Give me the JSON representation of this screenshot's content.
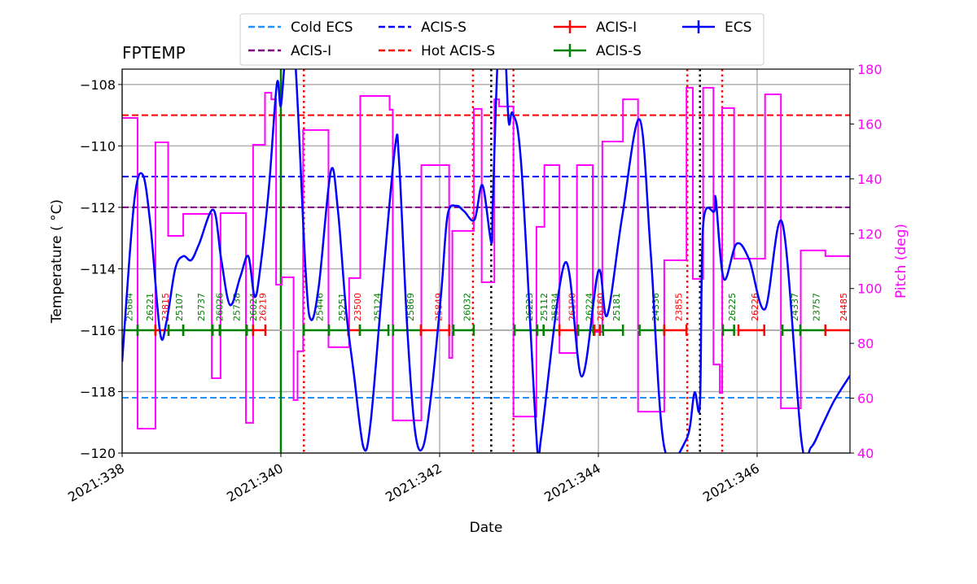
{
  "chart_data": {
    "type": "line",
    "title": "FPTEMP",
    "xlabel": "Date",
    "ylabel": "Temperature ($^\\circ$C)",
    "ylabel_display": "Temperature ( °C)",
    "y2label": "Pitch (deg)",
    "xlim": [
      338.0,
      347.17
    ],
    "ylim": [
      -120,
      -107.5
    ],
    "y2lim": [
      40,
      180
    ],
    "grid": true,
    "legend_placement": "top-center",
    "x_ticks": [
      {
        "value": 338,
        "label": "2021:338"
      },
      {
        "value": 340,
        "label": "2021:340"
      },
      {
        "value": 342,
        "label": "2021:342"
      },
      {
        "value": 344,
        "label": "2021:344"
      },
      {
        "value": 346,
        "label": "2021:346"
      }
    ],
    "y_ticks": [
      -108,
      -110,
      -112,
      -114,
      -116,
      -118,
      -120
    ],
    "y_tick_labels": [
      "−108",
      "−110",
      "−112",
      "−114",
      "−116",
      "−118",
      "−120"
    ],
    "y2_ticks": [
      40,
      60,
      80,
      100,
      120,
      140,
      160,
      180
    ],
    "y2_tick_labels": [
      "40",
      "60",
      "80",
      "100",
      "120",
      "140",
      "160",
      "180"
    ],
    "colors": {
      "temperature": "#0000ff",
      "pitch": "#ff00ff",
      "cold_ecs": "#1e90ff",
      "acis_s_limit": "#0000ff",
      "acis_i_limit": "#800080",
      "hot_acis_s": "#ff0000",
      "acis_i_obs": "#ff0000",
      "acis_s_obs": "#008000",
      "ecs_obs": "#0000ff",
      "grid": "#b0b0b0"
    },
    "legend": [
      {
        "label": "Cold ECS",
        "style": "dashed",
        "color": "#1e90ff"
      },
      {
        "label": "ACIS-I",
        "style": "dashed",
        "color": "#800080"
      },
      {
        "label": "ACIS-S",
        "style": "dashed",
        "color": "#0000ff"
      },
      {
        "label": "Hot ACIS-S",
        "style": "dashed",
        "color": "#ff0000"
      },
      {
        "label": "ACIS-I",
        "style": "errorbar",
        "color": "#ff0000"
      },
      {
        "label": "ACIS-S",
        "style": "errorbar",
        "color": "#008000"
      },
      {
        "label": "ECS",
        "style": "errorbar",
        "color": "#0000ff"
      }
    ],
    "limit_lines": [
      {
        "name": "Cold ECS",
        "value": -118.2,
        "color": "#1e90ff"
      },
      {
        "name": "ACIS-S",
        "value": -111.0,
        "color": "#0000ff"
      },
      {
        "name": "ACIS-I",
        "value": -112.0,
        "color": "#800080"
      },
      {
        "name": "Hot ACIS-S",
        "value": -109.0,
        "color": "#ff0000"
      }
    ],
    "vertical_lines": [
      {
        "x": 340.0,
        "style": "solid",
        "color": "#008000"
      },
      {
        "x": 340.29,
        "style": "dotted",
        "color": "#ff0000"
      },
      {
        "x": 342.42,
        "style": "dotted",
        "color": "#ff0000"
      },
      {
        "x": 342.65,
        "style": "dotted",
        "color": "#000000"
      },
      {
        "x": 342.93,
        "style": "dotted",
        "color": "#ff0000"
      },
      {
        "x": 345.12,
        "style": "dotted",
        "color": "#ff0000"
      },
      {
        "x": 345.28,
        "style": "dotted",
        "color": "#000000"
      },
      {
        "x": 345.56,
        "style": "dotted",
        "color": "#ff0000"
      }
    ],
    "obsid_level": -116,
    "observations": [
      {
        "obsid": "25684",
        "instrument": "ACIS-S",
        "start": 337.9,
        "stop": 338.195
      },
      {
        "obsid": "26221",
        "instrument": "ACIS-S",
        "start": 338.195,
        "stop": 338.42
      },
      {
        "obsid": "23815",
        "instrument": "ACIS-I",
        "start": 338.42,
        "stop": 338.585
      },
      {
        "obsid": "25107",
        "instrument": "ACIS-S",
        "start": 338.585,
        "stop": 338.77
      },
      {
        "obsid": "25737",
        "instrument": "ACIS-S",
        "start": 338.77,
        "stop": 339.14
      },
      {
        "obsid": "26026",
        "instrument": "ACIS-S",
        "start": 339.14,
        "stop": 339.23
      },
      {
        "obsid": "25738",
        "instrument": "ACIS-S",
        "start": 339.23,
        "stop": 339.57
      },
      {
        "obsid": "26024",
        "instrument": "ACIS-S",
        "start": 339.57,
        "stop": 339.65
      },
      {
        "obsid": "26219",
        "instrument": "ACIS-I",
        "start": 339.65,
        "stop": 339.805
      },
      {
        "obsid": "25446",
        "instrument": "ACIS-S",
        "start": 340.29,
        "stop": 340.605
      },
      {
        "obsid": "25251",
        "instrument": "ACIS-S",
        "start": 340.605,
        "stop": 340.85
      },
      {
        "obsid": "23500",
        "instrument": "ACIS-I",
        "start": 340.85,
        "stop": 340.995
      },
      {
        "obsid": "25124",
        "instrument": "ACIS-S",
        "start": 340.995,
        "stop": 341.355
      },
      {
        "obsid": "25869",
        "instrument": "ACIS-S",
        "start": 341.415,
        "stop": 341.765
      },
      {
        "obsid": "25849",
        "instrument": "ACIS-I",
        "start": 341.765,
        "stop": 342.12
      },
      {
        "obsid": "26032",
        "instrument": "ACIS-S",
        "start": 342.175,
        "stop": 342.43
      },
      {
        "obsid": "26223",
        "instrument": "ACIS-S",
        "start": 342.945,
        "stop": 343.23
      },
      {
        "obsid": "25112",
        "instrument": "ACIS-S",
        "start": 343.23,
        "stop": 343.31
      },
      {
        "obsid": "25834",
        "instrument": "ACIS-S",
        "start": 343.31,
        "stop": 343.51
      },
      {
        "obsid": "26190",
        "instrument": "ACIS-I",
        "start": 343.51,
        "stop": 343.745
      },
      {
        "obsid": "26224",
        "instrument": "ACIS-S",
        "start": 343.745,
        "stop": 343.94
      },
      {
        "obsid": "26160",
        "instrument": "ACIS-I",
        "start": 343.95,
        "stop": 344.02
      },
      {
        "obsid": "25181",
        "instrument": "ACIS-S",
        "start": 344.06,
        "stop": 344.31
      },
      {
        "obsid": "24336",
        "instrument": "ACIS-S",
        "start": 344.52,
        "stop": 344.83
      },
      {
        "obsid": "23855",
        "instrument": "ACIS-I",
        "start": 344.83,
        "stop": 345.11
      },
      {
        "obsid": "26225",
        "instrument": "ACIS-S",
        "start": 345.57,
        "stop": 345.71
      },
      {
        "obsid": "26226",
        "instrument": "ACIS-I",
        "start": 345.765,
        "stop": 346.09
      },
      {
        "obsid": "24337",
        "instrument": "ACIS-S",
        "start": 346.32,
        "stop": 346.545
      },
      {
        "obsid": "23757",
        "instrument": "ACIS-S",
        "start": 346.545,
        "stop": 346.86
      },
      {
        "obsid": "24485",
        "instrument": "ACIS-I",
        "start": 346.86,
        "stop": 347.23
      }
    ],
    "series": [
      {
        "name": "FPTEMP",
        "axis": "left",
        "points": [
          [
            338.0,
            -117.03
          ],
          [
            338.15,
            -111.87
          ],
          [
            338.26,
            -110.94
          ],
          [
            338.36,
            -112.66
          ],
          [
            338.48,
            -116.11
          ],
          [
            338.56,
            -115.71
          ],
          [
            338.67,
            -113.99
          ],
          [
            338.77,
            -113.59
          ],
          [
            338.87,
            -113.72
          ],
          [
            338.97,
            -113.19
          ],
          [
            339.15,
            -112.08
          ],
          [
            339.25,
            -113.72
          ],
          [
            339.36,
            -115.18
          ],
          [
            339.49,
            -114.25
          ],
          [
            339.59,
            -113.59
          ],
          [
            339.67,
            -114.91
          ],
          [
            339.74,
            -113.99
          ],
          [
            339.85,
            -111.34
          ],
          [
            339.95,
            -107.97
          ],
          [
            340.0,
            -108.69
          ],
          [
            340.07,
            -106.8
          ],
          [
            340.17,
            -106.8
          ],
          [
            340.31,
            -113.99
          ],
          [
            340.38,
            -115.66
          ],
          [
            340.48,
            -114.52
          ],
          [
            340.63,
            -110.81
          ],
          [
            340.72,
            -112.13
          ],
          [
            340.82,
            -115.31
          ],
          [
            340.92,
            -117.43
          ],
          [
            341.04,
            -119.81
          ],
          [
            341.13,
            -119.02
          ],
          [
            341.28,
            -114.52
          ],
          [
            341.44,
            -110.01
          ],
          [
            341.49,
            -110.54
          ],
          [
            341.59,
            -115.84
          ],
          [
            341.69,
            -119.28
          ],
          [
            341.79,
            -119.81
          ],
          [
            341.9,
            -117.96
          ],
          [
            342.02,
            -114.78
          ],
          [
            342.1,
            -112.26
          ],
          [
            342.21,
            -111.95
          ],
          [
            342.31,
            -112.13
          ],
          [
            342.44,
            -112.4
          ],
          [
            342.54,
            -111.28
          ],
          [
            342.65,
            -113.14
          ],
          [
            342.67,
            -111.87
          ],
          [
            342.74,
            -106.8
          ],
          [
            342.82,
            -106.8
          ],
          [
            342.87,
            -109.22
          ],
          [
            342.92,
            -108.95
          ],
          [
            343.03,
            -110.68
          ],
          [
            343.23,
            -119.87
          ],
          [
            343.28,
            -119.47
          ],
          [
            343.58,
            -113.8
          ],
          [
            343.79,
            -117.51
          ],
          [
            344.0,
            -114.07
          ],
          [
            344.11,
            -115.52
          ],
          [
            344.3,
            -112.3
          ],
          [
            344.52,
            -109.14
          ],
          [
            344.66,
            -113.5
          ],
          [
            344.83,
            -119.81
          ],
          [
            345.11,
            -119.55
          ],
          [
            345.21,
            -118.04
          ],
          [
            345.28,
            -118.36
          ],
          [
            345.32,
            -112.58
          ],
          [
            345.46,
            -112.13
          ],
          [
            345.48,
            -111.74
          ],
          [
            345.58,
            -114.33
          ],
          [
            345.74,
            -113.19
          ],
          [
            345.9,
            -113.7
          ],
          [
            346.1,
            -115.31
          ],
          [
            346.32,
            -112.53
          ],
          [
            346.56,
            -119.63
          ],
          [
            346.68,
            -119.81
          ],
          [
            346.82,
            -119.1
          ],
          [
            346.97,
            -118.3
          ],
          [
            347.17,
            -117.48
          ]
        ]
      },
      {
        "name": "Pitch",
        "axis": "right",
        "step": true,
        "points": [
          [
            338.0,
            162.2
          ],
          [
            338.195,
            48.9
          ],
          [
            338.42,
            153.3
          ],
          [
            338.58,
            119.2
          ],
          [
            338.77,
            127.2
          ],
          [
            339.13,
            67.3
          ],
          [
            339.24,
            127.5
          ],
          [
            339.56,
            51.0
          ],
          [
            339.65,
            152.4
          ],
          [
            339.8,
            171.4
          ],
          [
            339.88,
            169.0
          ],
          [
            339.94,
            101.4
          ],
          [
            340.01,
            104.1
          ],
          [
            340.16,
            59.3
          ],
          [
            340.21,
            77.1
          ],
          [
            340.28,
            157.8
          ],
          [
            340.6,
            78.6
          ],
          [
            340.86,
            103.8
          ],
          [
            341.0,
            170.2
          ],
          [
            341.37,
            165.2
          ],
          [
            341.41,
            51.9
          ],
          [
            341.77,
            145.0
          ],
          [
            342.12,
            74.7
          ],
          [
            342.16,
            121.0
          ],
          [
            342.43,
            165.5
          ],
          [
            342.53,
            102.3
          ],
          [
            342.69,
            169.0
          ],
          [
            342.75,
            166.4
          ],
          [
            342.93,
            53.3
          ],
          [
            343.22,
            122.5
          ],
          [
            343.32,
            145.0
          ],
          [
            343.51,
            76.5
          ],
          [
            343.73,
            145.0
          ],
          [
            343.93,
            84.2
          ],
          [
            344.05,
            153.6
          ],
          [
            344.31,
            169.0
          ],
          [
            344.5,
            55.1
          ],
          [
            344.83,
            110.3
          ],
          [
            345.11,
            173.2
          ],
          [
            345.19,
            103.5
          ],
          [
            345.32,
            173.2
          ],
          [
            345.45,
            72.3
          ],
          [
            345.53,
            61.9
          ],
          [
            345.56,
            165.8
          ],
          [
            345.71,
            110.9
          ],
          [
            346.1,
            170.8
          ],
          [
            346.3,
            56.3
          ],
          [
            346.55,
            113.9
          ],
          [
            346.86,
            111.8
          ],
          [
            347.17,
            111.8
          ]
        ]
      }
    ]
  }
}
